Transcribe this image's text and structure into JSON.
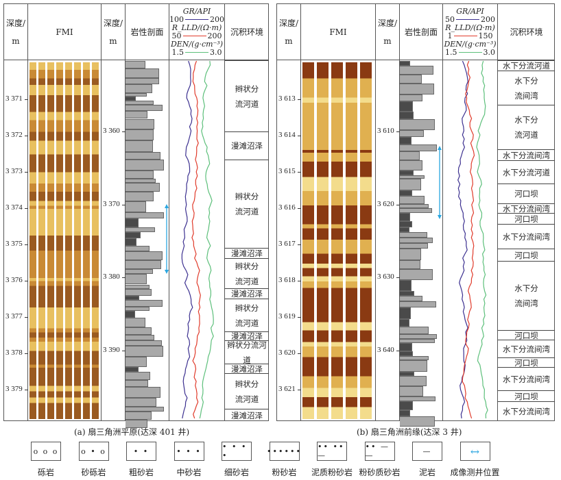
{
  "header": {
    "depth": "深度/",
    "depth_unit": "m",
    "fmi": "FMI",
    "lithology": "岩性剖面",
    "facies": "沉积环境",
    "gr_label": "GR/API",
    "rlld_label": "R_LLD/(Ω·m)",
    "den_label": "DEN/(g·cm⁻³)"
  },
  "colors": {
    "gr": "#3b2f8f",
    "rlld": "#e03a2a",
    "den": "#5cbf7a",
    "arrow": "#2aa6e0",
    "lithology": "#a9a9a9",
    "mud": "#4a4a4a"
  },
  "panel_a": {
    "caption": "(a) 扇三角洲平原(达深 401 井)",
    "gr_scale": [
      "100",
      "200"
    ],
    "rlld_scale": [
      "50",
      "200"
    ],
    "den_scale": [
      "1.5",
      "3.0"
    ],
    "fmi_depths": [
      "3 371",
      "3 372",
      "3 373",
      "3 374",
      "3 375",
      "3 376",
      "3 377",
      "3 378",
      "3 379"
    ],
    "log_depths": [
      "3 360",
      "3 370",
      "3 380",
      "3 390"
    ],
    "facies": [
      "辫状分流河道",
      "漫滩沼泽",
      "辫状分流河道",
      "漫滩沼泽",
      "辫状分流河道",
      "漫滩沼泽",
      "辫状分流河道",
      "漫滩沼泽",
      "辫状分流河道",
      "漫滩沼泽",
      "辫状分流河道",
      "漫滩沼泽"
    ]
  },
  "panel_b": {
    "caption": "(b) 扇三角洲前缘(达深 3 井)",
    "gr_scale": [
      "50",
      "200"
    ],
    "rlld_scale": [
      "1",
      "150"
    ],
    "den_scale": [
      "1.5",
      "3.0"
    ],
    "fmi_depths": [
      "3 613",
      "3 614",
      "3 615",
      "3 616",
      "3 617",
      "3 618",
      "3 619",
      "3 620",
      "3 621"
    ],
    "log_depths": [
      "3 610",
      "3 620",
      "3 630",
      "3 640"
    ],
    "facies": [
      "水下分流河道",
      "水下分流间湾",
      "水下分流河道",
      "水下分流间湾",
      "水下分流河道",
      "河口坝",
      "水下分流间湾",
      "河口坝",
      "水下分流间湾",
      "河口坝",
      "水下分流间湾",
      "河口坝",
      "水下分流间湾",
      "河口坝",
      "水下分流间湾",
      "河口坝",
      "水下分流间湾"
    ]
  },
  "legend": [
    {
      "symbol": "o o o",
      "label": "砾岩"
    },
    {
      "symbol": "o • o",
      "label": "砂砾岩"
    },
    {
      "symbol": "• •",
      "label": "粗砂岩"
    },
    {
      "symbol": "• • •",
      "label": "中砂岩"
    },
    {
      "symbol": "• • • •",
      "label": "细砂岩"
    },
    {
      "symbol": "••••••",
      "label": "粉砂岩"
    },
    {
      "symbol": "•• ••—",
      "label": "泥质粉砂岩"
    },
    {
      "symbol": "•• — —",
      "label": "粉砂质砂岩"
    },
    {
      "symbol": "—",
      "label": "泥岩"
    },
    {
      "symbol": "↔",
      "label": "成像测井位置"
    }
  ]
}
